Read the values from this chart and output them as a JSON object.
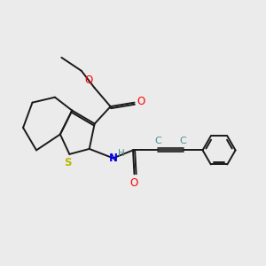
{
  "bg_color": "#ebebeb",
  "atom_colors": {
    "S": "#b8b800",
    "O": "#ff0000",
    "N": "#0000ff",
    "H": "#4a9090",
    "C_triple": "#4a9090",
    "default": "#1a1a1a"
  },
  "bond_lw": 1.4,
  "font_size_atom": 8.5,
  "font_size_H": 7.5,
  "xlim": [
    0,
    10
  ],
  "ylim": [
    0,
    10
  ]
}
